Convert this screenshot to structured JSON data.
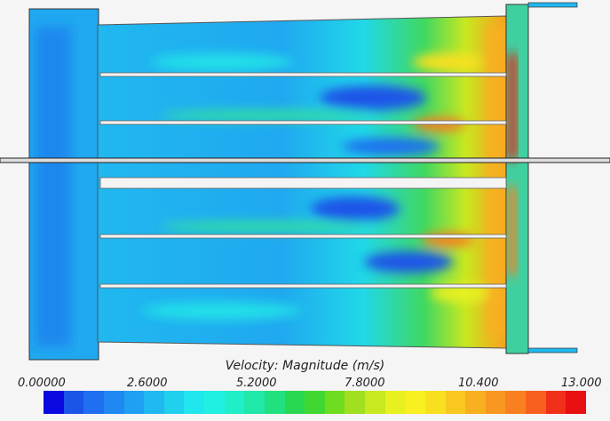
{
  "colorbar": {
    "title": "Velocity: Magnitude (m/s)",
    "ticks": [
      "0.00000",
      "2.6000",
      "5.2000",
      "7.8000",
      "10.400",
      "13.000"
    ],
    "min": 0,
    "max": 13,
    "colors": [
      "#0a0ae0",
      "#1a55e8",
      "#1f6ff0",
      "#2088f2",
      "#20a0f2",
      "#20b8f0",
      "#20d0ee",
      "#20e6ee",
      "#20f0e0",
      "#20eec8",
      "#20e8a8",
      "#20e080",
      "#28d850",
      "#40d830",
      "#70dc20",
      "#a0e020",
      "#c8e820",
      "#e8f020",
      "#f8f020",
      "#f8e020",
      "#f8c820",
      "#f8b020",
      "#f89820",
      "#f88020",
      "#f86020",
      "#f03018",
      "#e81010"
    ]
  },
  "plot": {
    "domain_colors": {
      "low": "#1e7df0",
      "mid": "#20e0e0",
      "high": "#f8e020",
      "peak": "#e82010"
    }
  }
}
